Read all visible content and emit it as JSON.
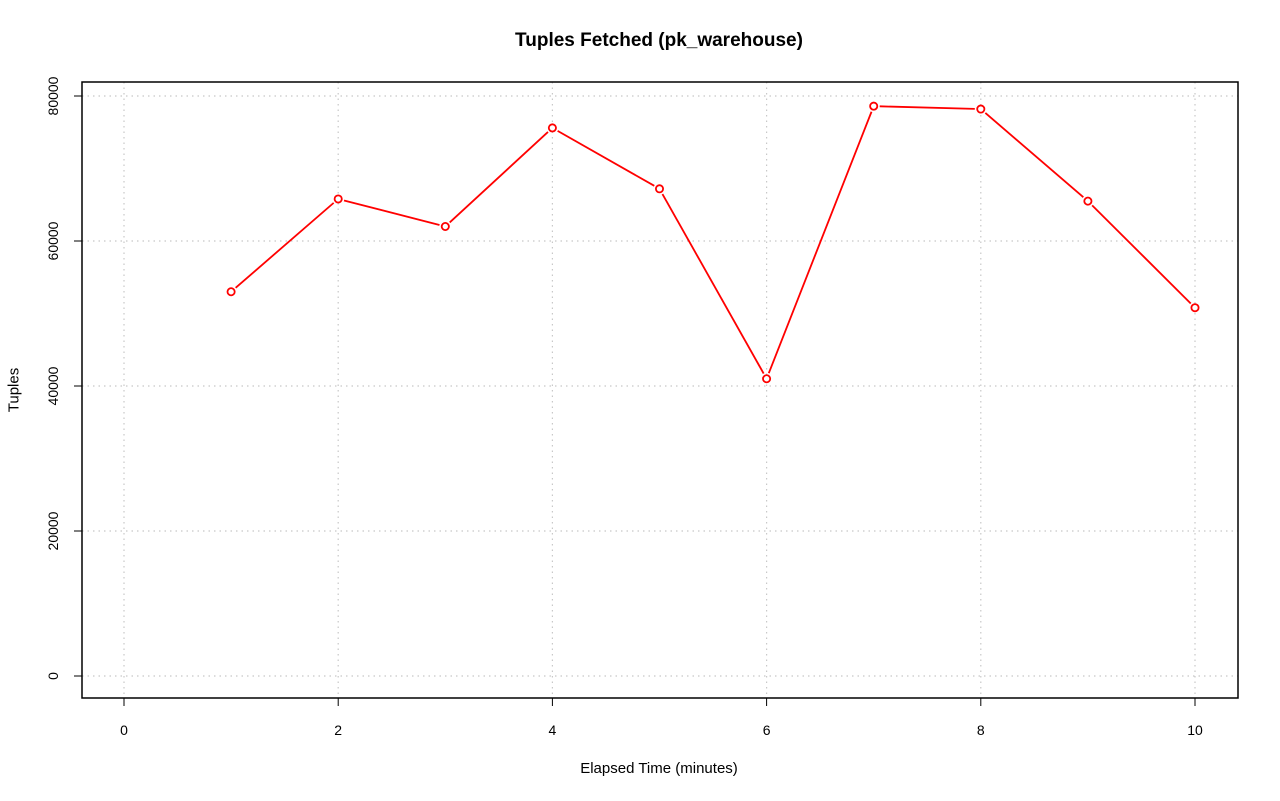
{
  "chart_data": {
    "type": "line",
    "title": "Tuples Fetched (pk_warehouse)",
    "xlabel": "Elapsed Time (minutes)",
    "ylabel": "Tuples",
    "xlim": [
      0,
      10
    ],
    "ylim": [
      0,
      80000
    ],
    "xticks": [
      0,
      2,
      4,
      6,
      8,
      10
    ],
    "yticks": [
      0,
      20000,
      40000,
      60000,
      80000
    ],
    "grid": true,
    "series": [
      {
        "color": "#ff0000",
        "marker": "open-circle",
        "x": [
          1,
          2,
          3,
          4,
          5,
          6,
          7,
          8,
          9,
          10
        ],
        "y": [
          53000,
          65800,
          62000,
          75600,
          67200,
          41000,
          78600,
          78200,
          65500,
          50800
        ]
      }
    ]
  }
}
